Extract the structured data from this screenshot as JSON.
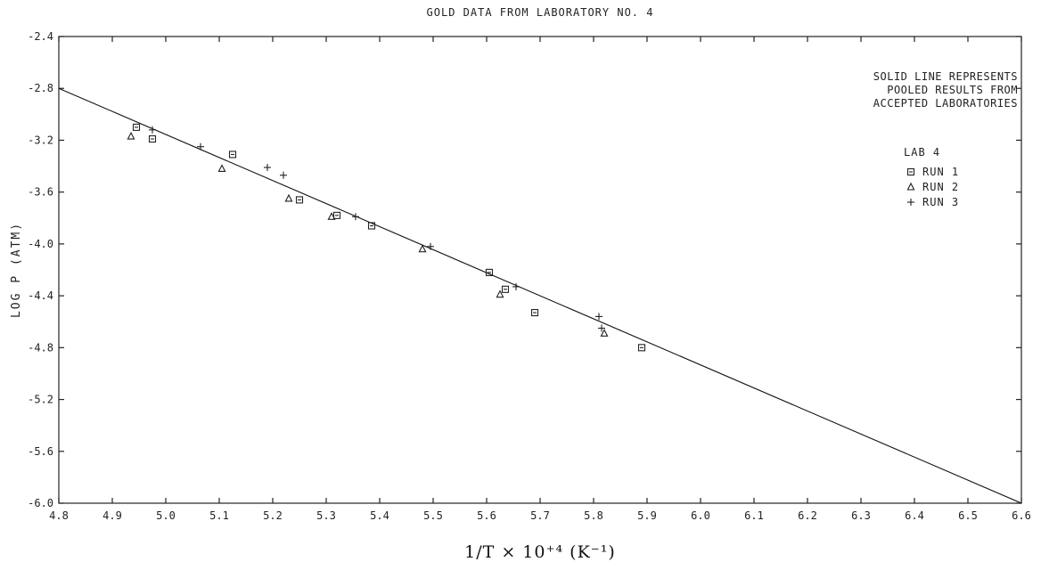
{
  "chart_data": {
    "type": "scatter",
    "title": "GOLD DATA FROM LABORATORY NO. 4",
    "xlabel": "1/T × 10⁺⁴ (K⁻¹)",
    "ylabel": "LOG P (ATM)",
    "xlim": [
      4.8,
      6.6
    ],
    "ylim": [
      -6.0,
      -2.4
    ],
    "x_ticks": [
      4.8,
      4.9,
      5.0,
      5.1,
      5.2,
      5.3,
      5.4,
      5.5,
      5.6,
      5.7,
      5.8,
      5.9,
      6.0,
      6.1,
      6.2,
      6.3,
      6.4,
      6.5,
      6.6
    ],
    "y_ticks": [
      -2.4,
      -2.8,
      -3.2,
      -3.6,
      -4.0,
      -4.4,
      -4.8,
      -5.2,
      -5.6,
      -6.0
    ],
    "grid": false,
    "legend_position": "top-right",
    "annotation_lines": [
      "SOLID LINE REPRESENTS",
      "POOLED RESULTS FROM",
      "ACCEPTED LABORATORIES"
    ],
    "legend_title": "LAB 4",
    "fit_line": {
      "x": [
        4.8,
        6.6
      ],
      "y": [
        -2.8,
        -6.0
      ]
    },
    "series": [
      {
        "name": "RUN 1",
        "marker": "square",
        "x": [
          4.945,
          4.975,
          5.125,
          5.25,
          5.32,
          5.385,
          5.605,
          5.635,
          5.69,
          5.89
        ],
        "y": [
          -3.1,
          -3.19,
          -3.31,
          -3.66,
          -3.78,
          -3.86,
          -4.22,
          -4.35,
          -4.53,
          -4.8
        ]
      },
      {
        "name": "RUN 2",
        "marker": "triangle",
        "x": [
          4.935,
          5.105,
          5.23,
          5.31,
          5.48,
          5.625,
          5.82
        ],
        "y": [
          -3.17,
          -3.42,
          -3.65,
          -3.79,
          -4.04,
          -4.39,
          -4.69
        ]
      },
      {
        "name": "RUN 3",
        "marker": "plus",
        "x": [
          4.975,
          5.065,
          5.19,
          5.22,
          5.355,
          5.495,
          5.655,
          5.81,
          5.815
        ],
        "y": [
          -3.12,
          -3.25,
          -3.41,
          -3.47,
          -3.79,
          -4.02,
          -4.33,
          -4.56,
          -4.65
        ]
      }
    ]
  }
}
